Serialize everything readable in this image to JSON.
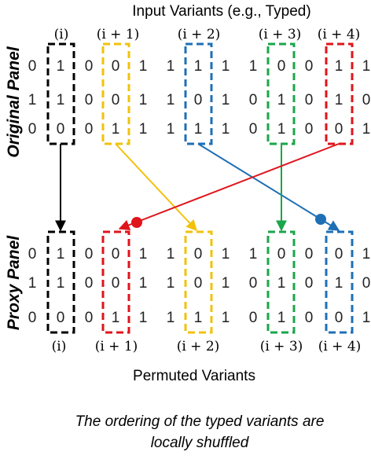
{
  "title": "Input Variants (e.g., Typed)",
  "original_label": "Original Panel",
  "proxy_label": "Proxy Panel",
  "permuted_label": "Permuted Variants",
  "caption_line1": "The ordering of the typed variants are",
  "caption_line2": "locally shuffled",
  "top_indices": [
    "(i)",
    "(i + 1)",
    "(i + 2)",
    "(i + 3)",
    "(i + 4)"
  ],
  "bottom_indices": [
    "(i)",
    "(i + 1)",
    "(i + 2)",
    "(i + 3)",
    "(i + 4)"
  ],
  "colors": {
    "i": "#000000",
    "i1": "#f2c10c",
    "i2": "#1f6fb5",
    "i3": "#1aa64a",
    "i4": "#e0141b"
  },
  "original_matrix": [
    [
      "0",
      "1",
      "0",
      "0",
      "1",
      "1",
      "1",
      "1",
      "1",
      "0",
      "0",
      "1",
      "1"
    ],
    [
      "1",
      "1",
      "0",
      "0",
      "1",
      "1",
      "0",
      "1",
      "0",
      "1",
      "0",
      "1",
      "0"
    ],
    [
      "0",
      "0",
      "0",
      "1",
      "1",
      "1",
      "1",
      "1",
      "0",
      "1",
      "0",
      "0",
      "1"
    ]
  ],
  "proxy_matrix": [
    [
      "0",
      "1",
      "0",
      "0",
      "1",
      "1",
      "0",
      "1",
      "1",
      "0",
      "0",
      "0",
      "1"
    ],
    [
      "1",
      "1",
      "0",
      "0",
      "1",
      "1",
      "0",
      "1",
      "0",
      "1",
      "0",
      "1",
      "0"
    ],
    [
      "0",
      "0",
      "0",
      "1",
      "1",
      "1",
      "1",
      "1",
      "0",
      "1",
      "0",
      "0",
      "1"
    ]
  ]
}
